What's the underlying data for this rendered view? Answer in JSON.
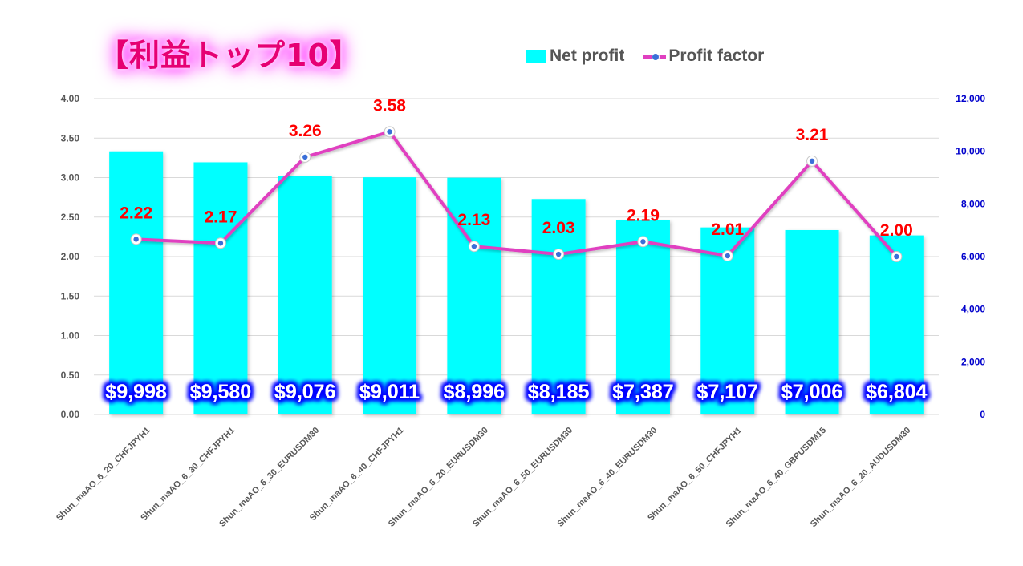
{
  "title": "【利益トップ10】",
  "legend": {
    "bar_label": "Net profit",
    "line_label": "Profit factor"
  },
  "colors": {
    "bar": "#00ffff",
    "line": "#e040c0",
    "marker": "#3a6fd8",
    "pf_label": "#ff0000",
    "value_label_text": "#ffffff",
    "value_label_glow": "#0000ff",
    "title": "#e60073",
    "right_axis": "#0000cc"
  },
  "chart_data": {
    "type": "bar",
    "categories": [
      "Shun_maAO_6_20_CHFJPYH1",
      "Shun_maAO_6_30_CHFJPYH1",
      "Shun_maAO_6_30_EURUSDM30",
      "Shun_maAO_6_40_CHFJPYH1",
      "Shun_maAO_6_20_EURUSDM30",
      "Shun_maAO_6_50_EURUSDM30",
      "Shun_maAO_6_40_EURUSDM30",
      "Shun_maAO_6_50_CHFJPYH1",
      "Shun_maAO_6_40_GBPUSDM15",
      "Shun_maAO_6_20_AUDUSDM30"
    ],
    "series": [
      {
        "name": "Net profit",
        "type": "bar",
        "axis": "right",
        "values": [
          9998,
          9580,
          9076,
          9011,
          8996,
          8185,
          7387,
          7107,
          7006,
          6804
        ],
        "labels": [
          "$9,998",
          "$9,580",
          "$9,076",
          "$9,011",
          "$8,996",
          "$8,185",
          "$7,387",
          "$7,107",
          "$7,006",
          "$6,804"
        ]
      },
      {
        "name": "Profit factor",
        "type": "line",
        "axis": "left",
        "values": [
          2.22,
          2.17,
          3.26,
          3.58,
          2.13,
          2.03,
          2.19,
          2.01,
          3.21,
          2.0
        ],
        "labels": [
          "2.22",
          "2.17",
          "3.26",
          "3.58",
          "2.13",
          "2.03",
          "2.19",
          "2.01",
          "3.21",
          "2.00"
        ]
      }
    ],
    "left_axis": {
      "range": [
        0,
        4
      ],
      "ticks": [
        "0.00",
        "0.50",
        "1.00",
        "1.50",
        "2.00",
        "2.50",
        "3.00",
        "3.50",
        "4.00"
      ]
    },
    "right_axis": {
      "range": [
        0,
        12000
      ],
      "ticks": [
        "0",
        "2,000",
        "4,000",
        "6,000",
        "8,000",
        "10,000",
        "12,000"
      ]
    },
    "grid": true,
    "legend_position": "top"
  }
}
